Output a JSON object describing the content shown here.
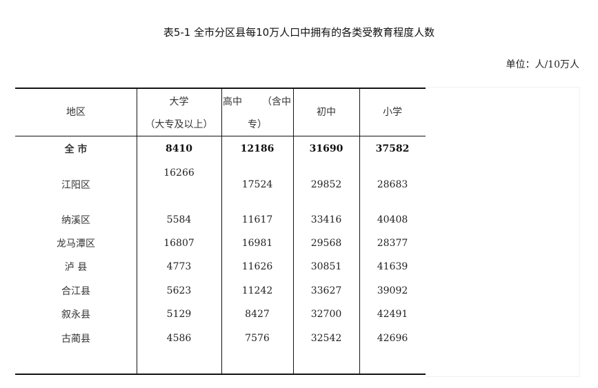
{
  "title": "表5-1 全市分区县每10万人口中拥有的各类受教育程度人数",
  "unit": "单位：人/10万人",
  "headers": {
    "region": "地区",
    "college_line1": "大学",
    "college_line2": "（大专及以上）",
    "highschool_line1a": "高中",
    "highschool_line1b": "（含中",
    "highschool_line2": "专）",
    "junior": "初中",
    "primary": "小学"
  },
  "rows": [
    {
      "region": "全 市",
      "college": "8410",
      "highschool": "12186",
      "junior": "31690",
      "primary": "37582",
      "total": true
    },
    {
      "region": "江阳区",
      "college": "16266",
      "highschool": "17524",
      "junior": "29852",
      "primary": "28683"
    },
    {
      "region": "纳溪区",
      "college": "5584",
      "highschool": "11617",
      "junior": "33416",
      "primary": "40408"
    },
    {
      "region": "龙马潭区",
      "college": "16807",
      "highschool": "16981",
      "junior": "29568",
      "primary": "28377"
    },
    {
      "region": "泸 县",
      "college": "4773",
      "highschool": "11626",
      "junior": "30851",
      "primary": "41639"
    },
    {
      "region": "合江县",
      "college": "5623",
      "highschool": "11242",
      "junior": "33627",
      "primary": "39092"
    },
    {
      "region": "叙永县",
      "college": "5129",
      "highschool": "8427",
      "junior": "32700",
      "primary": "42491"
    },
    {
      "region": "古蔺县",
      "college": "4586",
      "highschool": "7576",
      "junior": "32542",
      "primary": "42696"
    }
  ]
}
